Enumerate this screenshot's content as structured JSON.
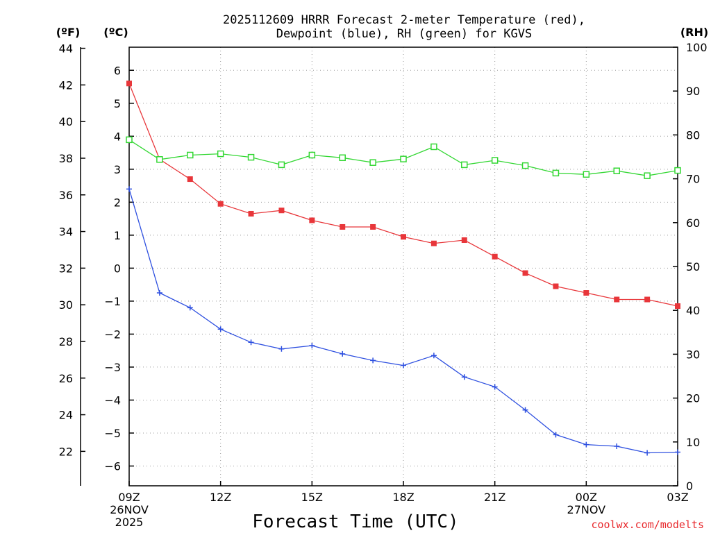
{
  "chart_data": {
    "type": "line",
    "title_line1": "2025112609 HRRR Forecast 2-meter Temperature (red),",
    "title_line2": "Dewpoint (blue), RH (green) for KGVS",
    "xlabel": "Forecast Time (UTC)",
    "credit": "coolwx.com/modelts",
    "unit_labels": {
      "fahrenheit": "(ºF)",
      "celsius": "(ºC)",
      "rh": "(RH)"
    },
    "x_range": [
      0,
      18
    ],
    "x_ticks": [
      {
        "x": 0,
        "lines": [
          "09Z",
          "26NOV",
          "2025"
        ]
      },
      {
        "x": 3,
        "lines": [
          "12Z"
        ]
      },
      {
        "x": 6,
        "lines": [
          "15Z"
        ]
      },
      {
        "x": 9,
        "lines": [
          "18Z"
        ]
      },
      {
        "x": 12,
        "lines": [
          "21Z"
        ]
      },
      {
        "x": 15,
        "lines": [
          "00Z",
          "27NOV"
        ]
      },
      {
        "x": 18,
        "lines": [
          "03Z"
        ]
      }
    ],
    "celsius_axis": {
      "range": [
        -6.6,
        6.7
      ],
      "ticks": [
        6,
        5,
        4,
        3,
        2,
        1,
        0,
        -1,
        -2,
        -3,
        -4,
        -5,
        -6
      ]
    },
    "fahrenheit_axis": {
      "range": [
        20.12,
        44.06
      ],
      "ticks": [
        44,
        42,
        40,
        38,
        36,
        34,
        32,
        30,
        28,
        26,
        24,
        22
      ]
    },
    "rh_axis": {
      "range": [
        0,
        100
      ],
      "ticks": [
        100,
        90,
        80,
        70,
        60,
        50,
        40,
        30,
        20,
        10,
        0
      ]
    },
    "series": [
      {
        "name": "Temperature",
        "unit": "C",
        "color": "#e8363a",
        "marker": "filled-square",
        "values": [
          5.6,
          3.3,
          2.7,
          1.95,
          1.65,
          1.75,
          1.45,
          1.25,
          1.25,
          0.95,
          0.75,
          0.85,
          0.35,
          -0.15,
          -0.55,
          -0.75,
          -0.95,
          -0.95,
          -1.15
        ]
      },
      {
        "name": "Dewpoint",
        "unit": "C",
        "color": "#2d4fe0",
        "marker": "plus",
        "values": [
          2.4,
          -0.75,
          -1.2,
          -1.85,
          -2.25,
          -2.45,
          -2.35,
          -2.6,
          -2.8,
          -2.95,
          -2.65,
          -3.3,
          -3.6,
          -4.3,
          -5.05,
          -5.35,
          -5.4,
          -5.6,
          -5.58
        ]
      },
      {
        "name": "RH",
        "unit": "%",
        "color": "#33d733",
        "marker": "open-square",
        "values": [
          78.9,
          74.4,
          75.4,
          75.7,
          74.9,
          73.2,
          75.4,
          74.8,
          73.7,
          74.5,
          77.3,
          73.2,
          74.2,
          73.0,
          71.3,
          71.0,
          71.8,
          70.7,
          71.9
        ]
      }
    ]
  }
}
